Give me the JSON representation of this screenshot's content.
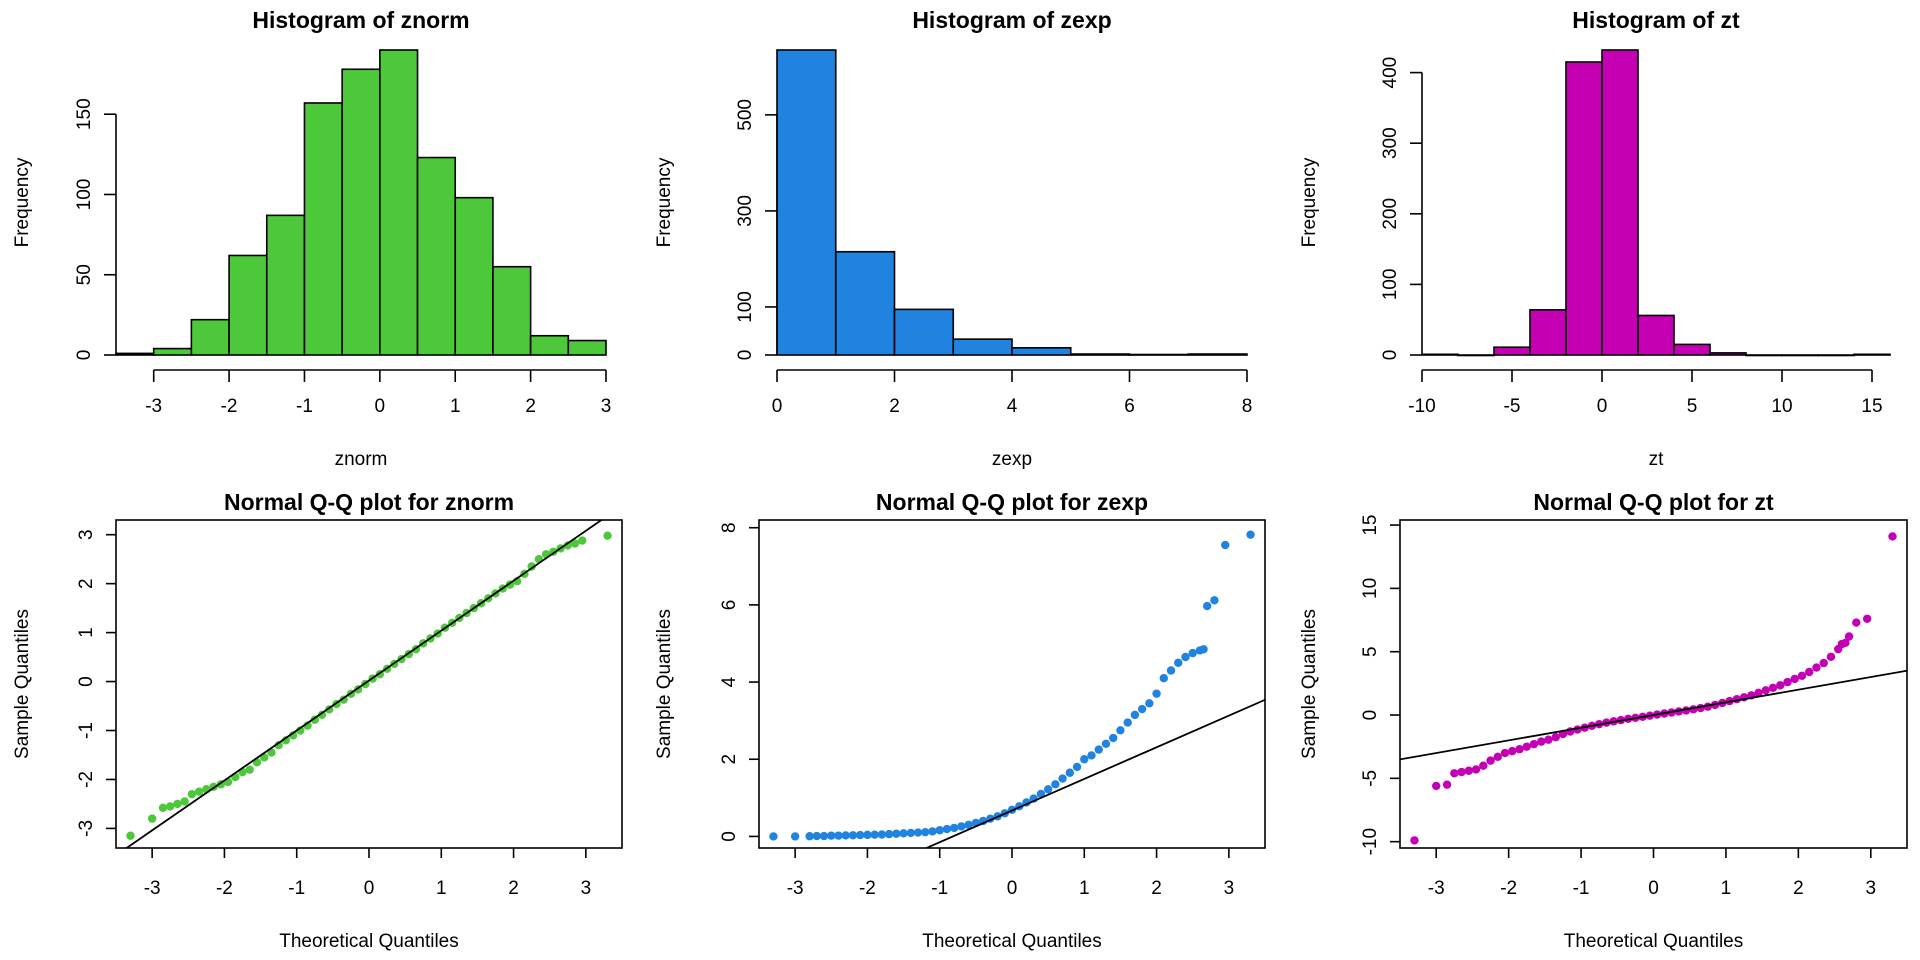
{
  "colors": {
    "green": "#4dc83a",
    "blue": "#2183e0",
    "magenta": "#c500b4"
  },
  "chart_data": [
    {
      "type": "bar",
      "title": "Histogram of znorm",
      "xlabel": "znorm",
      "ylabel": "Frequency",
      "color": "#4dc83a",
      "bins": [
        {
          "x0": -3.5,
          "x1": -3.0,
          "count": 1
        },
        {
          "x0": -3.0,
          "x1": -2.5,
          "count": 4
        },
        {
          "x0": -2.5,
          "x1": -2.0,
          "count": 22
        },
        {
          "x0": -2.0,
          "x1": -1.5,
          "count": 62
        },
        {
          "x0": -1.5,
          "x1": -1.0,
          "count": 87
        },
        {
          "x0": -1.0,
          "x1": -0.5,
          "count": 157
        },
        {
          "x0": -0.5,
          "x1": 0.0,
          "count": 178
        },
        {
          "x0": 0.0,
          "x1": 0.5,
          "count": 190
        },
        {
          "x0": 0.5,
          "x1": 1.0,
          "count": 123
        },
        {
          "x0": 1.0,
          "x1": 1.5,
          "count": 98
        },
        {
          "x0": 1.5,
          "x1": 2.0,
          "count": 55
        },
        {
          "x0": 2.0,
          "x1": 2.5,
          "count": 12
        },
        {
          "x0": 2.5,
          "x1": 3.0,
          "count": 9
        }
      ],
      "xlim": [
        -3.5,
        3.0
      ],
      "ylim": [
        0,
        190
      ],
      "xticks": [
        -3,
        -2,
        -1,
        0,
        1,
        2,
        3
      ],
      "yticks": [
        0,
        50,
        100,
        150
      ]
    },
    {
      "type": "bar",
      "title": "Histogram of zexp",
      "xlabel": "zexp",
      "ylabel": "Frequency",
      "color": "#2183e0",
      "bins": [
        {
          "x0": 0,
          "x1": 1,
          "count": 635
        },
        {
          "x0": 1,
          "x1": 2,
          "count": 215
        },
        {
          "x0": 2,
          "x1": 3,
          "count": 95
        },
        {
          "x0": 3,
          "x1": 4,
          "count": 33
        },
        {
          "x0": 4,
          "x1": 5,
          "count": 15
        },
        {
          "x0": 5,
          "x1": 6,
          "count": 2
        },
        {
          "x0": 6,
          "x1": 7,
          "count": 1
        },
        {
          "x0": 7,
          "x1": 8,
          "count": 2
        }
      ],
      "xlim": [
        0,
        8
      ],
      "ylim": [
        0,
        635
      ],
      "xticks": [
        0,
        2,
        4,
        6,
        8
      ],
      "yticks": [
        0,
        100,
        300,
        500
      ]
    },
    {
      "type": "bar",
      "title": "Histogram of zt",
      "xlabel": "zt",
      "ylabel": "Frequency",
      "color": "#c500b4",
      "bins": [
        {
          "x0": -10,
          "x1": -8,
          "count": 1
        },
        {
          "x0": -8,
          "x1": -6,
          "count": 0
        },
        {
          "x0": -6,
          "x1": -4,
          "count": 11
        },
        {
          "x0": -4,
          "x1": -2,
          "count": 64
        },
        {
          "x0": -2,
          "x1": 0,
          "count": 415
        },
        {
          "x0": 0,
          "x1": 2,
          "count": 432
        },
        {
          "x0": 2,
          "x1": 4,
          "count": 56
        },
        {
          "x0": 4,
          "x1": 6,
          "count": 15
        },
        {
          "x0": 6,
          "x1": 8,
          "count": 3
        },
        {
          "x0": 8,
          "x1": 10,
          "count": 0
        },
        {
          "x0": 10,
          "x1": 12,
          "count": 0
        },
        {
          "x0": 12,
          "x1": 14,
          "count": 0
        },
        {
          "x0": 14,
          "x1": 16,
          "count": 1
        }
      ],
      "xlim": [
        -10,
        16
      ],
      "ylim": [
        0,
        432
      ],
      "xticks": [
        -10,
        -5,
        0,
        5,
        10,
        15
      ],
      "yticks": [
        0,
        100,
        200,
        300,
        400
      ]
    },
    {
      "type": "scatter",
      "title": "Normal Q-Q plot for znorm",
      "xlabel": "Theoretical Quantiles",
      "ylabel": "Sample Quantiles",
      "color": "#4dc83a",
      "xlim": [
        -3.5,
        3.5
      ],
      "ylim": [
        -3.4,
        3.3
      ],
      "xticks": [
        -3,
        -2,
        -1,
        0,
        1,
        2,
        3
      ],
      "yticks": [
        -3,
        -2,
        -1,
        0,
        1,
        2,
        3
      ],
      "qq_line": {
        "intercept": 0.02,
        "slope": 1.02
      },
      "points": [
        [
          -3.3,
          -3.15
        ],
        [
          -3.0,
          -2.8
        ],
        [
          -2.85,
          -2.58
        ],
        [
          -2.75,
          -2.55
        ],
        [
          -2.65,
          -2.5
        ],
        [
          -2.55,
          -2.45
        ],
        [
          -2.45,
          -2.3
        ],
        [
          -2.35,
          -2.25
        ],
        [
          -2.25,
          -2.2
        ],
        [
          -2.15,
          -2.15
        ],
        [
          -2.05,
          -2.1
        ],
        [
          -1.95,
          -2.05
        ],
        [
          -1.85,
          -1.95
        ],
        [
          -1.75,
          -1.85
        ],
        [
          -1.65,
          -1.8
        ],
        [
          -1.55,
          -1.65
        ],
        [
          -1.45,
          -1.55
        ],
        [
          -1.35,
          -1.45
        ],
        [
          -1.25,
          -1.3
        ],
        [
          -1.15,
          -1.2
        ],
        [
          -1.05,
          -1.1
        ],
        [
          -0.95,
          -1.0
        ],
        [
          -0.85,
          -0.9
        ],
        [
          -0.75,
          -0.78
        ],
        [
          -0.65,
          -0.68
        ],
        [
          -0.55,
          -0.57
        ],
        [
          -0.45,
          -0.46
        ],
        [
          -0.35,
          -0.37
        ],
        [
          -0.25,
          -0.25
        ],
        [
          -0.15,
          -0.16
        ],
        [
          -0.05,
          -0.05
        ],
        [
          0.05,
          0.06
        ],
        [
          0.15,
          0.15
        ],
        [
          0.25,
          0.26
        ],
        [
          0.35,
          0.36
        ],
        [
          0.45,
          0.46
        ],
        [
          0.55,
          0.56
        ],
        [
          0.65,
          0.66
        ],
        [
          0.75,
          0.78
        ],
        [
          0.85,
          0.88
        ],
        [
          0.95,
          0.98
        ],
        [
          1.05,
          1.1
        ],
        [
          1.15,
          1.2
        ],
        [
          1.25,
          1.3
        ],
        [
          1.35,
          1.4
        ],
        [
          1.45,
          1.5
        ],
        [
          1.55,
          1.6
        ],
        [
          1.65,
          1.7
        ],
        [
          1.75,
          1.8
        ],
        [
          1.85,
          1.9
        ],
        [
          1.95,
          1.98
        ],
        [
          2.05,
          2.05
        ],
        [
          2.15,
          2.2
        ],
        [
          2.25,
          2.35
        ],
        [
          2.35,
          2.5
        ],
        [
          2.45,
          2.6
        ],
        [
          2.55,
          2.65
        ],
        [
          2.65,
          2.72
        ],
        [
          2.75,
          2.78
        ],
        [
          2.85,
          2.82
        ],
        [
          2.95,
          2.88
        ],
        [
          3.3,
          2.98
        ]
      ]
    },
    {
      "type": "scatter",
      "title": "Normal Q-Q plot for zexp",
      "xlabel": "Theoretical Quantiles",
      "ylabel": "Sample Quantiles",
      "color": "#2183e0",
      "xlim": [
        -3.5,
        3.5
      ],
      "ylim": [
        -0.3,
        8.2
      ],
      "xticks": [
        -3,
        -2,
        -1,
        0,
        1,
        2,
        3
      ],
      "yticks": [
        0,
        2,
        4,
        6,
        8
      ],
      "qq_line": {
        "intercept": 0.67,
        "slope": 0.82
      },
      "points": [
        [
          -3.3,
          0.0
        ],
        [
          -3.0,
          0.0
        ],
        [
          -2.8,
          0.005
        ],
        [
          -2.7,
          0.01
        ],
        [
          -2.6,
          0.01
        ],
        [
          -2.5,
          0.02
        ],
        [
          -2.4,
          0.02
        ],
        [
          -2.3,
          0.025
        ],
        [
          -2.2,
          0.03
        ],
        [
          -2.1,
          0.035
        ],
        [
          -2.0,
          0.04
        ],
        [
          -1.9,
          0.045
        ],
        [
          -1.8,
          0.05
        ],
        [
          -1.7,
          0.06
        ],
        [
          -1.6,
          0.07
        ],
        [
          -1.5,
          0.08
        ],
        [
          -1.4,
          0.09
        ],
        [
          -1.3,
          0.1
        ],
        [
          -1.2,
          0.11
        ],
        [
          -1.1,
          0.13
        ],
        [
          -1.0,
          0.16
        ],
        [
          -0.9,
          0.19
        ],
        [
          -0.8,
          0.22
        ],
        [
          -0.7,
          0.26
        ],
        [
          -0.6,
          0.3
        ],
        [
          -0.5,
          0.35
        ],
        [
          -0.4,
          0.4
        ],
        [
          -0.3,
          0.46
        ],
        [
          -0.2,
          0.52
        ],
        [
          -0.1,
          0.6
        ],
        [
          0.0,
          0.69
        ],
        [
          0.1,
          0.78
        ],
        [
          0.2,
          0.88
        ],
        [
          0.3,
          0.98
        ],
        [
          0.4,
          1.1
        ],
        [
          0.5,
          1.22
        ],
        [
          0.6,
          1.35
        ],
        [
          0.7,
          1.5
        ],
        [
          0.8,
          1.65
        ],
        [
          0.9,
          1.8
        ],
        [
          1.0,
          2.0
        ],
        [
          1.1,
          2.1
        ],
        [
          1.2,
          2.25
        ],
        [
          1.3,
          2.4
        ],
        [
          1.4,
          2.55
        ],
        [
          1.5,
          2.75
        ],
        [
          1.6,
          2.95
        ],
        [
          1.7,
          3.15
        ],
        [
          1.8,
          3.3
        ],
        [
          1.9,
          3.45
        ],
        [
          2.0,
          3.7
        ],
        [
          2.1,
          4.1
        ],
        [
          2.2,
          4.3
        ],
        [
          2.3,
          4.5
        ],
        [
          2.4,
          4.65
        ],
        [
          2.5,
          4.75
        ],
        [
          2.6,
          4.82
        ],
        [
          2.65,
          4.85
        ],
        [
          2.7,
          5.97
        ],
        [
          2.8,
          6.12
        ],
        [
          2.95,
          7.55
        ],
        [
          3.3,
          7.82
        ]
      ]
    },
    {
      "type": "scatter",
      "title": "Normal Q-Q plot for zt",
      "xlabel": "Theoretical Quantiles",
      "ylabel": "Sample Quantiles",
      "color": "#c500b4",
      "xlim": [
        -3.5,
        3.5
      ],
      "ylim": [
        -10.5,
        15.4
      ],
      "xticks": [
        -3,
        -2,
        -1,
        0,
        1,
        2,
        3
      ],
      "yticks": [
        -10,
        -5,
        0,
        5,
        10,
        15
      ],
      "qq_line": {
        "intercept": 0.0,
        "slope": 1.0
      },
      "points": [
        [
          -3.3,
          -9.9
        ],
        [
          -3.0,
          -5.6
        ],
        [
          -2.85,
          -5.5
        ],
        [
          -2.75,
          -4.6
        ],
        [
          -2.65,
          -4.5
        ],
        [
          -2.55,
          -4.4
        ],
        [
          -2.45,
          -4.3
        ],
        [
          -2.35,
          -4.0
        ],
        [
          -2.25,
          -3.6
        ],
        [
          -2.15,
          -3.3
        ],
        [
          -2.05,
          -3.0
        ],
        [
          -1.95,
          -2.85
        ],
        [
          -1.85,
          -2.7
        ],
        [
          -1.75,
          -2.5
        ],
        [
          -1.65,
          -2.3
        ],
        [
          -1.55,
          -2.1
        ],
        [
          -1.45,
          -1.95
        ],
        [
          -1.35,
          -1.75
        ],
        [
          -1.25,
          -1.5
        ],
        [
          -1.15,
          -1.3
        ],
        [
          -1.05,
          -1.15
        ],
        [
          -0.95,
          -1.0
        ],
        [
          -0.85,
          -0.85
        ],
        [
          -0.75,
          -0.72
        ],
        [
          -0.65,
          -0.6
        ],
        [
          -0.55,
          -0.5
        ],
        [
          -0.45,
          -0.4
        ],
        [
          -0.35,
          -0.3
        ],
        [
          -0.25,
          -0.22
        ],
        [
          -0.15,
          -0.14
        ],
        [
          -0.05,
          -0.05
        ],
        [
          0.05,
          0.04
        ],
        [
          0.15,
          0.12
        ],
        [
          0.25,
          0.2
        ],
        [
          0.35,
          0.28
        ],
        [
          0.45,
          0.36
        ],
        [
          0.55,
          0.45
        ],
        [
          0.65,
          0.55
        ],
        [
          0.75,
          0.66
        ],
        [
          0.85,
          0.8
        ],
        [
          0.95,
          0.95
        ],
        [
          1.05,
          1.1
        ],
        [
          1.15,
          1.25
        ],
        [
          1.25,
          1.4
        ],
        [
          1.35,
          1.55
        ],
        [
          1.45,
          1.75
        ],
        [
          1.55,
          1.95
        ],
        [
          1.65,
          2.15
        ],
        [
          1.75,
          2.35
        ],
        [
          1.85,
          2.6
        ],
        [
          1.95,
          2.85
        ],
        [
          2.05,
          3.1
        ],
        [
          2.15,
          3.4
        ],
        [
          2.25,
          3.75
        ],
        [
          2.35,
          4.1
        ],
        [
          2.45,
          4.6
        ],
        [
          2.55,
          5.2
        ],
        [
          2.6,
          5.6
        ],
        [
          2.65,
          5.7
        ],
        [
          2.7,
          6.2
        ],
        [
          2.8,
          7.3
        ],
        [
          2.95,
          7.6
        ],
        [
          3.3,
          14.1
        ]
      ]
    }
  ]
}
